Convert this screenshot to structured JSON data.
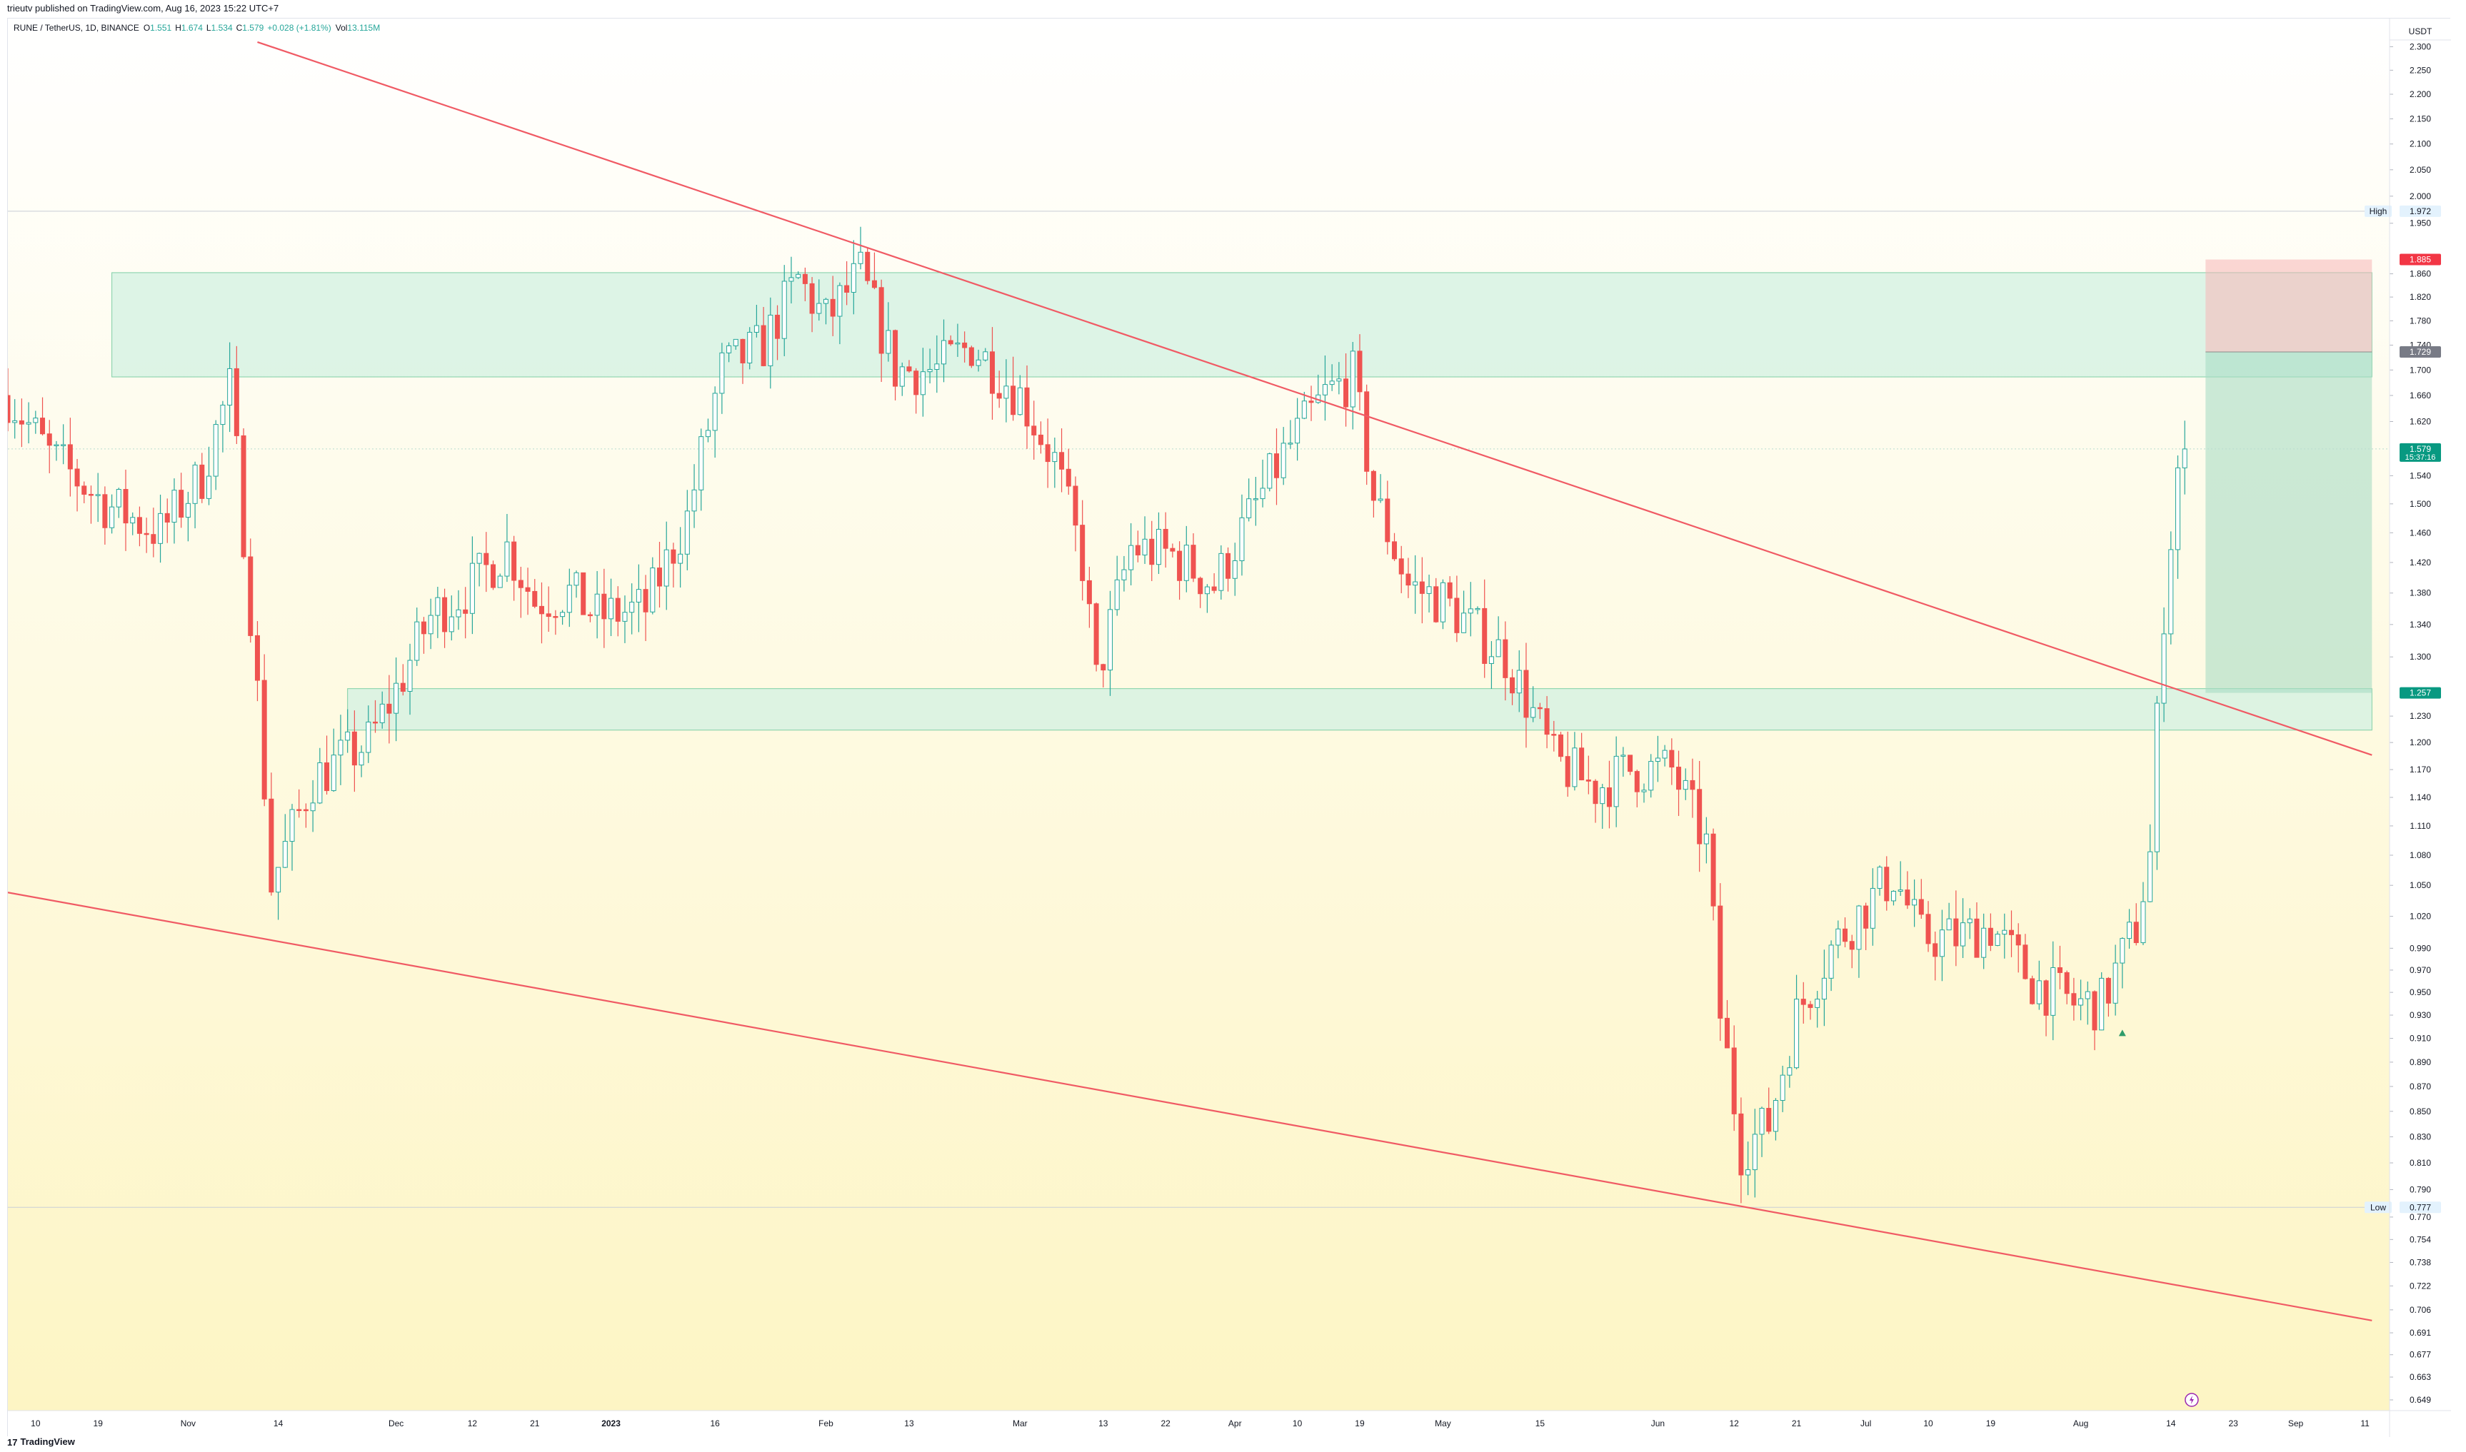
{
  "header": {
    "caption": "trieutv published on TradingView.com, Aug 16, 2023 15:22 UTC+7",
    "symbol": "RUNE / TetherUS, 1D, BINANCE",
    "o_label": "O",
    "o": "1.551",
    "h_label": "H",
    "h": "1.674",
    "l_label": "L",
    "l": "1.534",
    "c_label": "C",
    "c": "1.579",
    "change": "+0.028 (+1.81%)",
    "vol_label": "Vol",
    "vol": "13.115M"
  },
  "axis": {
    "currency": "USDT",
    "high_label": "High",
    "high_value": "1.972",
    "low_label": "Low",
    "low_value": "0.777",
    "stop_value": "1.885",
    "entry_value": "1.729",
    "last_value": "1.579",
    "countdown": "15:37:16",
    "target_value": "1.257"
  },
  "footer": {
    "brand": "TradingView",
    "logo_mark": "17"
  },
  "colors": {
    "up": "#26a69a",
    "down": "#ef5350",
    "trendline": "#f05a64",
    "zone": "#d2f0e1",
    "zone_border": "#7fcfa6",
    "bg_top": "#ffffff",
    "bg_bottom": "#fdf5c4"
  },
  "chart_data": {
    "type": "candlestick",
    "scale": "log",
    "y_ticks": [
      "2.300",
      "2.250",
      "2.200",
      "2.150",
      "2.100",
      "2.050",
      "2.000",
      "1.950",
      "1.860",
      "1.820",
      "1.780",
      "1.740",
      "1.700",
      "1.660",
      "1.620",
      "1.540",
      "1.500",
      "1.460",
      "1.420",
      "1.380",
      "1.340",
      "1.300",
      "1.230",
      "1.200",
      "1.170",
      "1.140",
      "1.110",
      "1.080",
      "1.050",
      "1.020",
      "0.990",
      "0.970",
      "0.950",
      "0.930",
      "0.910",
      "0.890",
      "0.870",
      "0.850",
      "0.830",
      "0.810",
      "0.790",
      "0.770",
      "0.754",
      "0.738",
      "0.722",
      "0.706",
      "0.691",
      "0.677",
      "0.663",
      "0.649"
    ],
    "ylim": [
      0.649,
      2.33
    ],
    "x_ticks": [
      {
        "date": "2022-10-10",
        "label": "10"
      },
      {
        "date": "2022-10-19",
        "label": "19"
      },
      {
        "date": "2022-11-01",
        "label": "Nov"
      },
      {
        "date": "2022-11-14",
        "label": "14"
      },
      {
        "date": "2022-12-01",
        "label": "Dec"
      },
      {
        "date": "2022-12-12",
        "label": "12"
      },
      {
        "date": "2022-12-21",
        "label": "21"
      },
      {
        "date": "2023-01-01",
        "label": "2023"
      },
      {
        "date": "2023-01-16",
        "label": "16"
      },
      {
        "date": "2023-02-01",
        "label": "Feb"
      },
      {
        "date": "2023-02-13",
        "label": "13"
      },
      {
        "date": "2023-03-01",
        "label": "Mar"
      },
      {
        "date": "2023-03-13",
        "label": "13"
      },
      {
        "date": "2023-03-22",
        "label": "22"
      },
      {
        "date": "2023-04-01",
        "label": "Apr"
      },
      {
        "date": "2023-04-10",
        "label": "10"
      },
      {
        "date": "2023-04-19",
        "label": "19"
      },
      {
        "date": "2023-05-01",
        "label": "May"
      },
      {
        "date": "2023-05-15",
        "label": "15"
      },
      {
        "date": "2023-06-01",
        "label": "Jun"
      },
      {
        "date": "2023-06-12",
        "label": "12"
      },
      {
        "date": "2023-06-21",
        "label": "21"
      },
      {
        "date": "2023-07-01",
        "label": "Jul"
      },
      {
        "date": "2023-07-10",
        "label": "10"
      },
      {
        "date": "2023-07-19",
        "label": "19"
      },
      {
        "date": "2023-08-01",
        "label": "Aug"
      },
      {
        "date": "2023-08-14",
        "label": "14"
      },
      {
        "date": "2023-08-23",
        "label": "23"
      },
      {
        "date": "2023-09-01",
        "label": "Sep"
      },
      {
        "date": "2023-09-11",
        "label": "11"
      }
    ],
    "x_range": [
      "2022-10-06",
      "2023-09-13"
    ],
    "trendlines": [
      {
        "name": "upper",
        "p1": {
          "date": "2022-11-11",
          "price": 2.31
        },
        "p2": {
          "date": "2023-09-12",
          "price": 1.186
        }
      },
      {
        "name": "lower",
        "p1": {
          "date": "2022-10-06",
          "price": 1.043
        },
        "p2": {
          "date": "2023-09-12",
          "price": 0.699
        }
      }
    ],
    "zones": [
      {
        "name": "resistance",
        "from": "2022-10-21",
        "to": "2023-09-12",
        "low": 1.689,
        "high": 1.862
      },
      {
        "name": "support",
        "from": "2022-11-24",
        "to": "2023-09-12",
        "low": 1.214,
        "high": 1.262
      }
    ],
    "position": {
      "from": "2023-08-19",
      "to": "2023-09-12",
      "entry": 1.729,
      "stop": 1.885,
      "target": 1.257
    },
    "series_points": [
      [
        "2022-10-06",
        1.66
      ],
      [
        "2022-10-12",
        1.57
      ],
      [
        "2022-10-20",
        1.5
      ],
      [
        "2022-10-28",
        1.46
      ],
      [
        "2022-11-03",
        1.54
      ],
      [
        "2022-11-07",
        1.67
      ],
      [
        "2022-11-10",
        1.36
      ],
      [
        "2022-11-13",
        1.05
      ],
      [
        "2022-11-19",
        1.16
      ],
      [
        "2022-11-27",
        1.2
      ],
      [
        "2022-12-01",
        1.26
      ],
      [
        "2022-12-06",
        1.35
      ],
      [
        "2022-12-12",
        1.39
      ],
      [
        "2022-12-17",
        1.44
      ],
      [
        "2022-12-21",
        1.37
      ],
      [
        "2022-12-26",
        1.38
      ],
      [
        "2022-12-30",
        1.35
      ],
      [
        "2023-01-06",
        1.36
      ],
      [
        "2023-01-12",
        1.48
      ],
      [
        "2023-01-17",
        1.7
      ],
      [
        "2023-01-23",
        1.74
      ],
      [
        "2023-01-28",
        1.85
      ],
      [
        "2023-02-01",
        1.78
      ],
      [
        "2023-02-06",
        1.86
      ],
      [
        "2023-02-11",
        1.7
      ],
      [
        "2023-02-17",
        1.7
      ],
      [
        "2023-02-22",
        1.74
      ],
      [
        "2023-03-01",
        1.66
      ],
      [
        "2023-03-06",
        1.56
      ],
      [
        "2023-03-10",
        1.42
      ],
      [
        "2023-03-12",
        1.27
      ],
      [
        "2023-03-17",
        1.44
      ],
      [
        "2023-03-23",
        1.43
      ],
      [
        "2023-03-29",
        1.39
      ],
      [
        "2023-04-03",
        1.48
      ],
      [
        "2023-04-08",
        1.57
      ],
      [
        "2023-04-14",
        1.66
      ],
      [
        "2023-04-18",
        1.69
      ],
      [
        "2023-04-21",
        1.51
      ],
      [
        "2023-04-26",
        1.39
      ],
      [
        "2023-05-01",
        1.37
      ],
      [
        "2023-05-06",
        1.33
      ],
      [
        "2023-05-10",
        1.3
      ],
      [
        "2023-05-13",
        1.25
      ],
      [
        "2023-05-17",
        1.18
      ],
      [
        "2023-05-23",
        1.15
      ],
      [
        "2023-05-28",
        1.17
      ],
      [
        "2023-06-03",
        1.17
      ],
      [
        "2023-06-08",
        1.09
      ],
      [
        "2023-06-10",
        0.93
      ],
      [
        "2023-06-13",
        0.82
      ],
      [
        "2023-06-17",
        0.84
      ],
      [
        "2023-06-21",
        0.93
      ],
      [
        "2023-06-26",
        0.99
      ],
      [
        "2023-07-01",
        1.03
      ],
      [
        "2023-07-05",
        1.06
      ],
      [
        "2023-07-09",
        1.0
      ],
      [
        "2023-07-14",
        1.0
      ],
      [
        "2023-07-19",
        1.01
      ],
      [
        "2023-07-25",
        0.96
      ],
      [
        "2023-07-31",
        0.94
      ],
      [
        "2023-08-04",
        0.94
      ],
      [
        "2023-08-09",
        1.01
      ],
      [
        "2023-08-11",
        1.08
      ],
      [
        "2023-08-12",
        1.22
      ],
      [
        "2023-08-13",
        1.36
      ],
      [
        "2023-08-15",
        1.55
      ],
      [
        "2023-08-16",
        1.579
      ]
    ]
  }
}
